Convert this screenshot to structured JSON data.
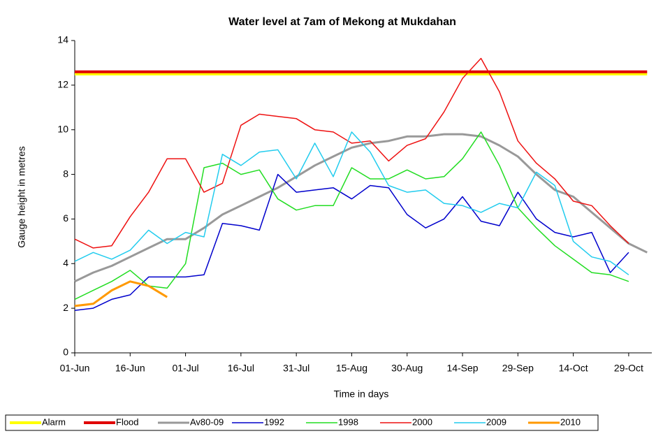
{
  "chart_data": {
    "type": "line",
    "title": "Water level at 7am of Mekong at Mukdahan",
    "x_label": "Time in days",
    "y_label": "Gauge height in metres",
    "categories": [
      "01-Jun",
      null,
      null,
      "16-Jun",
      null,
      null,
      "01-Jul",
      null,
      null,
      "16-Jul",
      null,
      null,
      "31-Jul",
      null,
      null,
      "15-Aug",
      null,
      null,
      "30-Aug",
      null,
      null,
      "14-Sep",
      null,
      null,
      "29-Sep",
      null,
      null,
      "14-Oct",
      null,
      null,
      "29-Oct",
      null
    ],
    "ylim": [
      0,
      14
    ],
    "yticks": [
      0,
      2,
      4,
      6,
      8,
      10,
      12,
      14
    ],
    "series": [
      {
        "name": "Alarm",
        "color": "#ffff00",
        "width": 4,
        "values": [
          12.5,
          12.5,
          12.5,
          12.5,
          12.5,
          12.5,
          12.5,
          12.5,
          12.5,
          12.5,
          12.5,
          12.5,
          12.5,
          12.5,
          12.5,
          12.5,
          12.5,
          12.5,
          12.5,
          12.5,
          12.5,
          12.5,
          12.5,
          12.5,
          12.5,
          12.5,
          12.5,
          12.5,
          12.5,
          12.5,
          12.5,
          12.5
        ]
      },
      {
        "name": "Flood",
        "color": "#e00000",
        "width": 4,
        "values": [
          12.6,
          12.6,
          12.6,
          12.6,
          12.6,
          12.6,
          12.6,
          12.6,
          12.6,
          12.6,
          12.6,
          12.6,
          12.6,
          12.6,
          12.6,
          12.6,
          12.6,
          12.6,
          12.6,
          12.6,
          12.6,
          12.6,
          12.6,
          12.6,
          12.6,
          12.6,
          12.6,
          12.6,
          12.6,
          12.6,
          12.6,
          12.6
        ]
      },
      {
        "name": "Av80-09",
        "color": "#999999",
        "width": 3,
        "values": [
          3.2,
          3.6,
          3.9,
          4.3,
          4.7,
          5.1,
          5.1,
          5.6,
          6.2,
          6.6,
          7.0,
          7.4,
          7.9,
          8.4,
          8.8,
          9.2,
          9.4,
          9.5,
          9.7,
          9.7,
          9.8,
          9.8,
          9.7,
          9.3,
          8.8,
          8.0,
          7.3,
          7.0,
          6.3,
          5.6,
          4.9,
          4.5
        ]
      },
      {
        "name": "1992",
        "color": "#0000cc",
        "width": 1.5,
        "values": [
          1.9,
          2.0,
          2.4,
          2.6,
          3.4,
          3.4,
          3.4,
          3.5,
          5.8,
          5.7,
          5.5,
          8.0,
          7.2,
          7.3,
          7.4,
          6.9,
          7.5,
          7.4,
          6.2,
          5.6,
          6.0,
          7.0,
          5.9,
          5.7,
          7.2,
          6.0,
          5.4,
          5.2,
          5.4,
          3.6,
          4.5,
          null
        ]
      },
      {
        "name": "1998",
        "color": "#22dd22",
        "width": 1.5,
        "values": [
          2.4,
          2.8,
          3.2,
          3.7,
          3.0,
          2.9,
          4.0,
          8.3,
          8.5,
          8.0,
          8.2,
          6.9,
          6.4,
          6.6,
          6.6,
          8.3,
          7.8,
          7.8,
          8.2,
          7.8,
          7.9,
          8.7,
          9.9,
          8.4,
          6.5,
          5.6,
          4.8,
          4.2,
          3.6,
          3.5,
          3.2,
          null
        ]
      },
      {
        "name": "2000",
        "color": "#ee1111",
        "width": 1.5,
        "values": [
          5.1,
          4.7,
          4.8,
          6.1,
          7.2,
          8.7,
          8.7,
          7.2,
          7.6,
          10.2,
          10.7,
          10.6,
          10.5,
          10.0,
          9.9,
          9.4,
          9.5,
          8.6,
          9.3,
          9.6,
          10.8,
          12.3,
          13.2,
          11.7,
          9.5,
          8.5,
          7.8,
          6.8,
          6.6,
          5.7,
          4.9,
          null
        ]
      },
      {
        "name": "2009",
        "color": "#22ccee",
        "width": 1.5,
        "values": [
          4.1,
          4.5,
          4.2,
          4.6,
          5.5,
          4.9,
          5.4,
          5.2,
          8.9,
          8.4,
          9.0,
          9.1,
          7.8,
          9.4,
          7.9,
          9.9,
          9.0,
          7.5,
          7.2,
          7.3,
          6.7,
          6.6,
          6.3,
          6.7,
          6.5,
          8.1,
          7.5,
          5.0,
          4.3,
          4.1,
          3.5,
          null
        ]
      },
      {
        "name": "2010",
        "color": "#ff9900",
        "width": 3,
        "values": [
          2.1,
          2.2,
          2.8,
          3.2,
          3.0,
          2.5,
          null,
          null,
          null,
          null,
          null,
          null,
          null,
          null,
          null,
          null,
          null,
          null,
          null,
          null,
          null,
          null,
          null,
          null,
          null,
          null,
          null,
          null,
          null,
          null,
          null,
          null
        ]
      }
    ]
  }
}
